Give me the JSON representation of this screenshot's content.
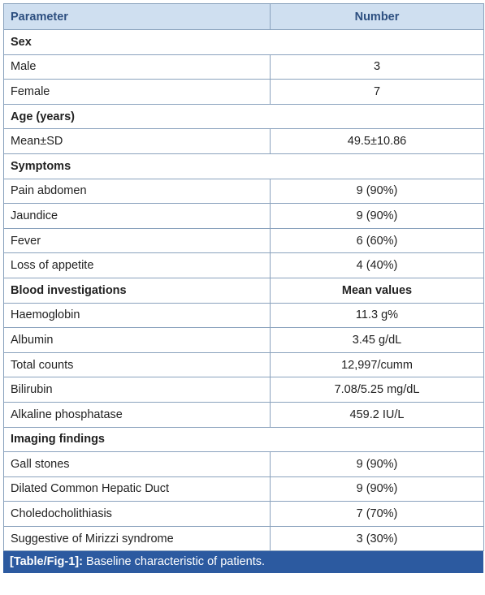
{
  "table": {
    "header": [
      "Parameter",
      "Number"
    ],
    "sections": [
      {
        "title": "Sex",
        "rows": [
          [
            "Male",
            "3"
          ],
          [
            "Female",
            "7"
          ]
        ]
      },
      {
        "title": "Age (years)",
        "rows": [
          [
            "Mean±SD",
            "49.5±10.86"
          ]
        ]
      },
      {
        "title": "Symptoms",
        "rows": [
          [
            "Pain abdomen",
            "9 (90%)"
          ],
          [
            "Jaundice",
            "9 (90%)"
          ],
          [
            "Fever",
            "6 (60%)"
          ],
          [
            "Loss of appetite",
            "4 (40%)"
          ]
        ]
      },
      {
        "title": "Blood investigations",
        "value": "Mean values",
        "rows": [
          [
            "Haemoglobin",
            "11.3 g%"
          ],
          [
            "Albumin",
            "3.45 g/dL"
          ],
          [
            "Total counts",
            "12,997/cumm"
          ],
          [
            "Bilirubin",
            "7.08/5.25 mg/dL"
          ],
          [
            "Alkaline phosphatase",
            "459.2 IU/L"
          ]
        ]
      },
      {
        "title": "Imaging findings",
        "rows": [
          [
            "Gall stones",
            "9 (90%)"
          ],
          [
            "Dilated Common Hepatic Duct",
            "9 (90%)"
          ],
          [
            "Choledocholithiasis",
            "7 (70%)"
          ],
          [
            "Suggestive of Mirizzi syndrome",
            "3 (30%)"
          ]
        ]
      }
    ]
  },
  "caption": {
    "label": "[Table/Fig-1]:",
    "text": "Baseline characteristic of patients."
  }
}
